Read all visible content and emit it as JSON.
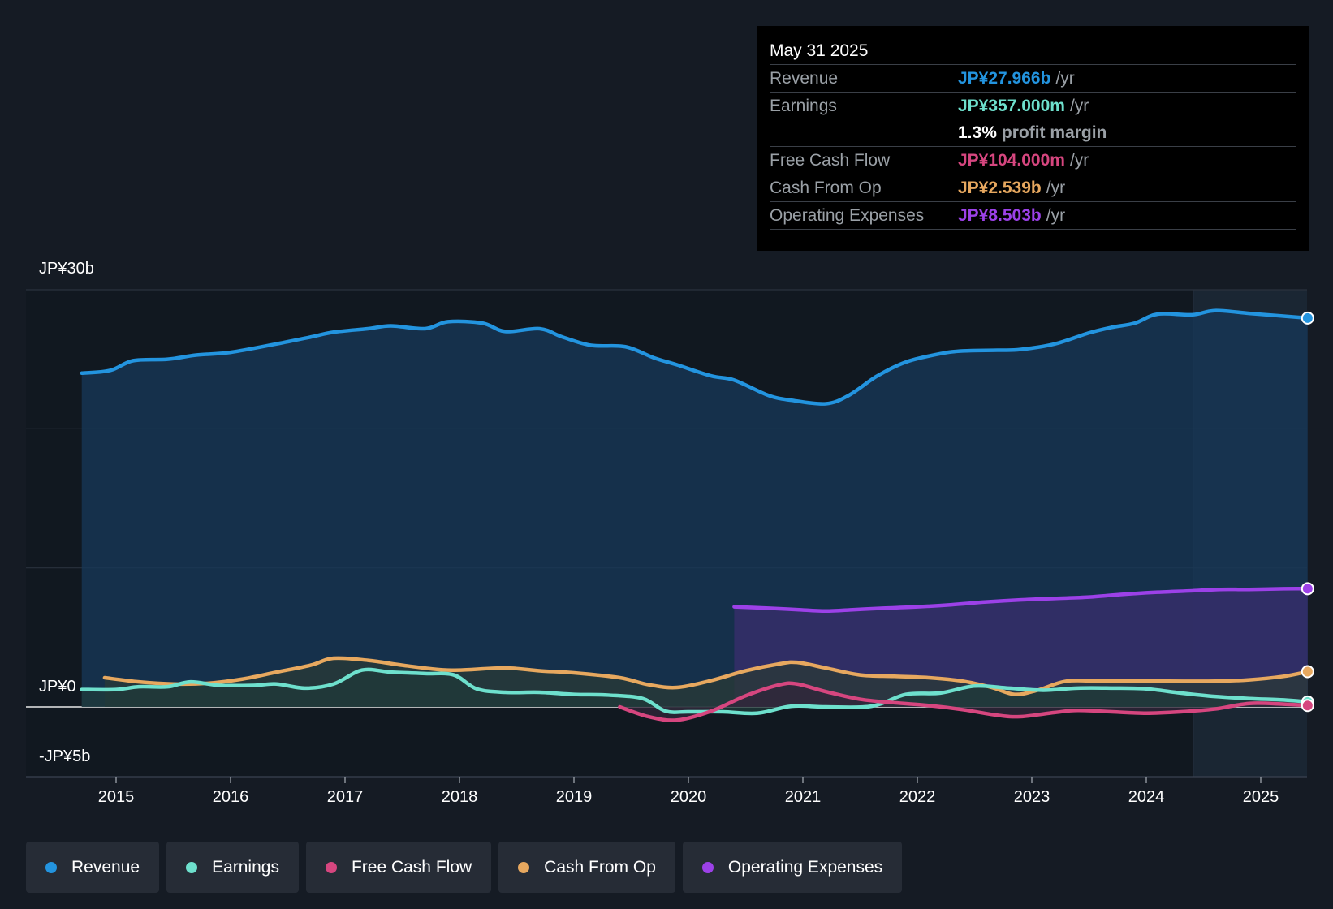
{
  "chart_data": {
    "type": "line",
    "title": "",
    "x_ticks": [
      "2015",
      "2016",
      "2017",
      "2018",
      "2019",
      "2020",
      "2021",
      "2022",
      "2023",
      "2024",
      "2025"
    ],
    "y_ticks": [
      {
        "value": 30,
        "label": "JP¥30b"
      },
      {
        "value": 0,
        "label": "JP¥0"
      },
      {
        "value": -5,
        "label": "-JP¥5b"
      }
    ],
    "ylim": [
      -5,
      30
    ],
    "xlim": [
      2014.0,
      2025.5
    ],
    "highlight_from": 2024.41,
    "units": "JP¥ billions",
    "series": [
      {
        "name": "Revenue",
        "color": "#2394df",
        "fill": "#17385a",
        "x": [
          2014.7,
          2014.95,
          2015.15,
          2015.45,
          2015.7,
          2016.0,
          2016.4,
          2016.7,
          2016.9,
          2017.2,
          2017.4,
          2017.7,
          2017.9,
          2018.2,
          2018.4,
          2018.7,
          2018.9,
          2019.15,
          2019.45,
          2019.7,
          2019.9,
          2020.2,
          2020.4,
          2020.7,
          2020.9,
          2021.2,
          2021.4,
          2021.65,
          2021.9,
          2022.2,
          2022.4,
          2022.7,
          2022.9,
          2023.2,
          2023.5,
          2023.7,
          2023.9,
          2024.1,
          2024.4,
          2024.6,
          2024.9,
          2025.2,
          2025.41
        ],
        "values": [
          24.0,
          24.2,
          24.9,
          25.0,
          25.3,
          25.5,
          26.1,
          26.6,
          26.95,
          27.2,
          27.4,
          27.2,
          27.7,
          27.6,
          27.0,
          27.2,
          26.6,
          26.0,
          25.9,
          25.1,
          24.6,
          23.8,
          23.5,
          22.4,
          22.05,
          21.8,
          22.4,
          23.8,
          24.8,
          25.4,
          25.6,
          25.65,
          25.7,
          26.1,
          26.9,
          27.3,
          27.6,
          28.25,
          28.2,
          28.5,
          28.3,
          28.1,
          27.966
        ]
      },
      {
        "name": "Operating Expenses",
        "color": "#9c41e8",
        "fill": "#3a2d6e",
        "x": [
          2020.4,
          2020.7,
          2020.95,
          2021.2,
          2021.45,
          2021.7,
          2022.0,
          2022.3,
          2022.6,
          2022.9,
          2023.2,
          2023.5,
          2023.8,
          2024.1,
          2024.4,
          2024.65,
          2024.9,
          2025.2,
          2025.41
        ],
        "values": [
          7.2,
          7.1,
          7.0,
          6.9,
          7.0,
          7.1,
          7.2,
          7.35,
          7.55,
          7.7,
          7.8,
          7.9,
          8.1,
          8.25,
          8.35,
          8.45,
          8.45,
          8.5,
          8.503
        ]
      },
      {
        "name": "Cash From Op",
        "color": "#e7a85f",
        "fill": "#2a3a36",
        "x": [
          2014.9,
          2015.2,
          2015.5,
          2015.8,
          2016.1,
          2016.4,
          2016.7,
          2016.9,
          2017.2,
          2017.5,
          2017.8,
          2018.0,
          2018.4,
          2018.7,
          2019.0,
          2019.4,
          2019.65,
          2019.9,
          2020.2,
          2020.5,
          2020.8,
          2020.95,
          2021.2,
          2021.5,
          2021.8,
          2022.1,
          2022.4,
          2022.65,
          2022.85,
          2023.05,
          2023.3,
          2023.6,
          2023.9,
          2024.2,
          2024.6,
          2024.9,
          2025.2,
          2025.41
        ],
        "values": [
          2.1,
          1.8,
          1.65,
          1.7,
          2.0,
          2.5,
          3.0,
          3.5,
          3.35,
          3.0,
          2.7,
          2.65,
          2.8,
          2.6,
          2.45,
          2.1,
          1.6,
          1.4,
          1.9,
          2.6,
          3.1,
          3.2,
          2.8,
          2.3,
          2.2,
          2.1,
          1.85,
          1.4,
          0.9,
          1.2,
          1.85,
          1.85,
          1.85,
          1.85,
          1.85,
          1.95,
          2.2,
          2.539
        ]
      },
      {
        "name": "Earnings",
        "color": "#6ee0cd",
        "fill": "#1f3a3a",
        "x": [
          2014.7,
          2015.0,
          2015.2,
          2015.45,
          2015.65,
          2015.9,
          2016.2,
          2016.4,
          2016.65,
          2016.9,
          2017.15,
          2017.4,
          2017.7,
          2017.95,
          2018.15,
          2018.4,
          2018.7,
          2019.0,
          2019.3,
          2019.6,
          2019.8,
          2020.0,
          2020.3,
          2020.6,
          2020.9,
          2021.2,
          2021.6,
          2021.9,
          2022.2,
          2022.5,
          2022.8,
          2023.1,
          2023.4,
          2023.7,
          2024.0,
          2024.3,
          2024.6,
          2024.9,
          2025.2,
          2025.41
        ],
        "values": [
          1.25,
          1.25,
          1.45,
          1.45,
          1.8,
          1.55,
          1.55,
          1.65,
          1.35,
          1.65,
          2.65,
          2.5,
          2.4,
          2.3,
          1.3,
          1.05,
          1.05,
          0.9,
          0.85,
          0.6,
          -0.3,
          -0.35,
          -0.35,
          -0.45,
          0.05,
          0.0,
          0.05,
          0.9,
          1.0,
          1.5,
          1.35,
          1.2,
          1.35,
          1.35,
          1.3,
          1.0,
          0.75,
          0.6,
          0.5,
          0.357
        ]
      },
      {
        "name": "Free Cash Flow",
        "color": "#d6467f",
        "fill": "#32253a",
        "x": [
          2019.4,
          2019.65,
          2019.9,
          2020.2,
          2020.5,
          2020.8,
          2020.95,
          2021.2,
          2021.5,
          2021.8,
          2022.1,
          2022.4,
          2022.7,
          2022.9,
          2023.2,
          2023.4,
          2023.7,
          2024.0,
          2024.3,
          2024.6,
          2024.9,
          2025.2,
          2025.41
        ],
        "values": [
          0.0,
          -0.7,
          -0.95,
          -0.3,
          0.8,
          1.6,
          1.65,
          1.1,
          0.55,
          0.3,
          0.1,
          -0.2,
          -0.6,
          -0.7,
          -0.4,
          -0.25,
          -0.35,
          -0.45,
          -0.35,
          -0.15,
          0.25,
          0.2,
          0.104
        ]
      }
    ]
  },
  "tooltip": {
    "date": "May 31 2025",
    "rows": [
      {
        "label": "Revenue",
        "value": "JP¥27.966b",
        "unit": "/yr",
        "color": "#2394df"
      },
      {
        "label": "Earnings",
        "value": "JP¥357.000m",
        "unit": "/yr",
        "color": "#6ee0cd"
      },
      {
        "label": "",
        "value": "1.3%",
        "unit": "profit margin",
        "color": "#ffffff"
      },
      {
        "label": "Free Cash Flow",
        "value": "JP¥104.000m",
        "unit": "/yr",
        "color": "#d6467f"
      },
      {
        "label": "Cash From Op",
        "value": "JP¥2.539b",
        "unit": "/yr",
        "color": "#e7a85f"
      },
      {
        "label": "Operating Expenses",
        "value": "JP¥8.503b",
        "unit": "/yr",
        "color": "#9c41e8"
      }
    ]
  },
  "legend": [
    {
      "label": "Revenue",
      "color": "#2394df"
    },
    {
      "label": "Earnings",
      "color": "#6ee0cd"
    },
    {
      "label": "Free Cash Flow",
      "color": "#d6467f"
    },
    {
      "label": "Cash From Op",
      "color": "#e7a85f"
    },
    {
      "label": "Operating Expenses",
      "color": "#9c41e8"
    }
  ]
}
